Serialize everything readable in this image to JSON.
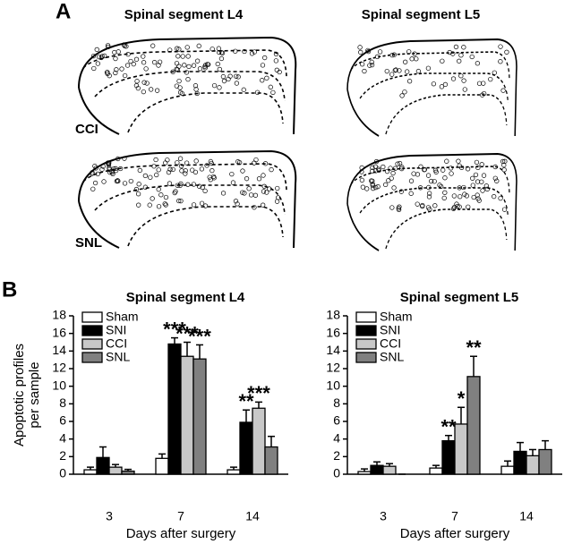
{
  "panel_a": {
    "label": "A",
    "columns": [
      "Spinal segment L4",
      "Spinal segment L5"
    ],
    "rows": [
      "CCI",
      "SNL"
    ]
  },
  "panel_b": {
    "label": "B"
  },
  "chart_data": [
    {
      "type": "bar",
      "title": "Spinal segment L4",
      "x_label": "Days after surgery",
      "y_label": [
        "Apoptotic profiles",
        "per sample"
      ],
      "categories": [
        "3",
        "7",
        "14"
      ],
      "ylim": [
        0,
        18
      ],
      "yticks": [
        0,
        2,
        4,
        6,
        8,
        10,
        12,
        14,
        16,
        18
      ],
      "legend": "top-left",
      "series": [
        {
          "name": "Sham",
          "color": "#ffffff",
          "values": [
            0.5,
            1.8,
            0.5
          ],
          "errors": [
            0.3,
            0.5,
            0.3
          ],
          "significance": [
            null,
            null,
            null
          ]
        },
        {
          "name": "SNI",
          "color": "#000000",
          "values": [
            1.9,
            14.8,
            5.9
          ],
          "errors": [
            1.2,
            0.7,
            1.4
          ],
          "significance": [
            null,
            "***",
            "**"
          ]
        },
        {
          "name": "CCI",
          "color": "#c8c8c8",
          "values": [
            0.8,
            13.4,
            7.5
          ],
          "errors": [
            0.3,
            1.6,
            0.7
          ],
          "significance": [
            null,
            "***",
            "***"
          ]
        },
        {
          "name": "SNL",
          "color": "#808080",
          "values": [
            0.35,
            13.1,
            3.1
          ],
          "errors": [
            0.2,
            1.6,
            1.2
          ],
          "significance": [
            null,
            "***",
            null
          ]
        }
      ]
    },
    {
      "type": "bar",
      "title": "Spinal segment L5",
      "x_label": "Days after surgery",
      "categories": [
        "3",
        "7",
        "14"
      ],
      "ylim": [
        0,
        18
      ],
      "yticks": [
        0,
        2,
        4,
        6,
        8,
        10,
        12,
        14,
        16,
        18
      ],
      "legend": "top-left",
      "series": [
        {
          "name": "Sham",
          "color": "#ffffff",
          "values": [
            0.3,
            0.7,
            0.9
          ],
          "errors": [
            0.3,
            0.3,
            0.6
          ],
          "significance": [
            null,
            null,
            null
          ]
        },
        {
          "name": "SNI",
          "color": "#000000",
          "values": [
            1.0,
            3.8,
            2.6
          ],
          "errors": [
            0.4,
            0.6,
            1.0
          ],
          "significance": [
            null,
            "**",
            null
          ]
        },
        {
          "name": "CCI",
          "color": "#c8c8c8",
          "values": [
            0.9,
            5.7,
            2.1
          ],
          "errors": [
            0.3,
            1.9,
            0.7
          ],
          "significance": [
            null,
            "*",
            null
          ]
        },
        {
          "name": "SNL",
          "color": "#808080",
          "values": [
            0,
            11.1,
            2.8
          ],
          "errors": [
            0,
            2.3,
            1.0
          ],
          "significance": [
            null,
            "**",
            null
          ]
        }
      ]
    }
  ]
}
